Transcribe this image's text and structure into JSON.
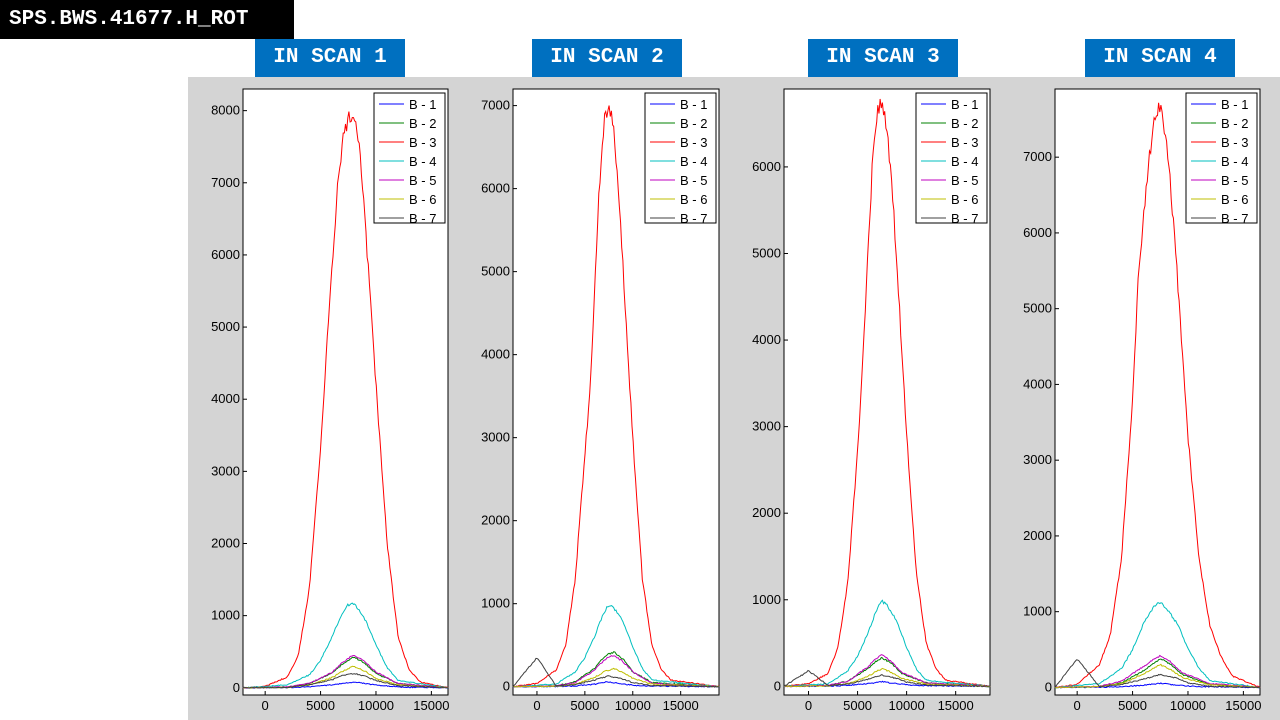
{
  "header": {
    "title": "SPS.BWS.41677.H_ROT"
  },
  "panels": [
    {
      "label": "IN SCAN 1"
    },
    {
      "label": "IN SCAN 2"
    },
    {
      "label": "IN SCAN 3"
    },
    {
      "label": "IN SCAN 4"
    }
  ],
  "series_colors": {
    "B - 1": "#0000ff",
    "B - 2": "#008000",
    "B - 3": "#ff0000",
    "B - 4": "#00bfbf",
    "B - 5": "#bf00bf",
    "B - 6": "#bfbf00",
    "B - 7": "#404040"
  },
  "chart_data": [
    {
      "type": "line",
      "title": "IN SCAN 1",
      "xlabel": "",
      "ylabel": "",
      "xlim": [
        -2000,
        16500
      ],
      "ylim": [
        -100,
        8300
      ],
      "xticks": [
        0,
        5000,
        10000,
        15000
      ],
      "yticks": [
        0,
        1000,
        2000,
        3000,
        4000,
        5000,
        6000,
        7000,
        8000
      ],
      "legend": "top-right",
      "series": [
        {
          "name": "B - 1",
          "x": [
            -2000,
            2000,
            4000,
            6000,
            8000,
            10000,
            12000,
            16500
          ],
          "y": [
            0,
            3,
            12,
            40,
            80,
            40,
            10,
            0
          ]
        },
        {
          "name": "B - 2",
          "x": [
            -2000,
            2000,
            4000,
            6000,
            7000,
            8000,
            9000,
            10000,
            12000,
            16500
          ],
          "y": [
            0,
            10,
            60,
            200,
            330,
            430,
            340,
            200,
            60,
            0
          ]
        },
        {
          "name": "B - 3",
          "x": [
            -2000,
            0,
            2000,
            3000,
            4000,
            5000,
            5500,
            6000,
            6500,
            7000,
            7500,
            8000,
            8500,
            9000,
            10000,
            11000,
            12000,
            13000,
            14000,
            16500
          ],
          "y": [
            0,
            20,
            150,
            450,
            1400,
            3300,
            4600,
            5700,
            6900,
            7600,
            7900,
            8000,
            7500,
            6500,
            4200,
            2000,
            700,
            250,
            80,
            0
          ]
        },
        {
          "name": "B - 4",
          "x": [
            -2000,
            2000,
            4000,
            5000,
            6000,
            7000,
            7500,
            8000,
            9000,
            10000,
            11000,
            12000,
            16500
          ],
          "y": [
            0,
            40,
            180,
            380,
            700,
            1050,
            1150,
            1170,
            950,
            600,
            280,
            100,
            0
          ]
        },
        {
          "name": "B - 5",
          "x": [
            -2000,
            2000,
            4000,
            6000,
            7000,
            8000,
            9000,
            10000,
            12000,
            16500
          ],
          "y": [
            0,
            10,
            60,
            210,
            350,
            460,
            360,
            220,
            60,
            0
          ]
        },
        {
          "name": "B - 6",
          "x": [
            -2000,
            2000,
            4000,
            6000,
            7000,
            8000,
            9000,
            10000,
            12000,
            16500
          ],
          "y": [
            0,
            5,
            40,
            140,
            230,
            300,
            230,
            130,
            40,
            0
          ]
        },
        {
          "name": "B - 7",
          "x": [
            -2000,
            2000,
            4000,
            6000,
            7000,
            8000,
            9000,
            10000,
            12000,
            16500
          ],
          "y": [
            0,
            5,
            40,
            110,
            170,
            200,
            160,
            100,
            30,
            0
          ]
        }
      ]
    },
    {
      "type": "line",
      "title": "IN SCAN 2",
      "xlabel": "",
      "ylabel": "",
      "xlim": [
        -2500,
        19000
      ],
      "ylim": [
        -100,
        7200
      ],
      "xticks": [
        0,
        5000,
        10000,
        15000
      ],
      "yticks": [
        0,
        1000,
        2000,
        3000,
        4000,
        5000,
        6000,
        7000
      ],
      "legend": "top-right",
      "series": [
        {
          "name": "B - 1",
          "x": [
            -2500,
            2000,
            4000,
            6000,
            7500,
            9000,
            11000,
            19000
          ],
          "y": [
            0,
            3,
            10,
            30,
            60,
            30,
            10,
            0
          ]
        },
        {
          "name": "B - 2",
          "x": [
            -2500,
            2000,
            4000,
            6000,
            7000,
            8000,
            9000,
            10000,
            12000,
            19000
          ],
          "y": [
            0,
            10,
            60,
            220,
            360,
            420,
            330,
            180,
            50,
            0
          ]
        },
        {
          "name": "B - 3",
          "x": [
            -2500,
            0,
            2000,
            3000,
            4000,
            5000,
            5500,
            6000,
            6500,
            7000,
            7500,
            8000,
            8500,
            9000,
            10000,
            11000,
            12000,
            13000,
            14000,
            19000
          ],
          "y": [
            0,
            40,
            200,
            500,
            1300,
            2800,
            3500,
            4700,
            6000,
            6800,
            7050,
            6700,
            6000,
            5000,
            3000,
            1300,
            500,
            200,
            80,
            0
          ]
        },
        {
          "name": "B - 4",
          "x": [
            -2500,
            2000,
            4000,
            5000,
            6000,
            7000,
            7500,
            8000,
            9000,
            10000,
            11000,
            12000,
            19000
          ],
          "y": [
            0,
            30,
            180,
            350,
            600,
            900,
            980,
            950,
            780,
            480,
            220,
            80,
            0
          ]
        },
        {
          "name": "B - 5",
          "x": [
            -2500,
            2000,
            4000,
            6000,
            7000,
            8000,
            9000,
            10000,
            12000,
            19000
          ],
          "y": [
            0,
            10,
            50,
            200,
            320,
            380,
            300,
            180,
            40,
            0
          ]
        },
        {
          "name": "B - 6",
          "x": [
            -2500,
            2000,
            4000,
            6000,
            7000,
            8000,
            9000,
            10000,
            12000,
            19000
          ],
          "y": [
            0,
            5,
            30,
            110,
            180,
            220,
            170,
            100,
            30,
            0
          ]
        },
        {
          "name": "B - 7",
          "x": [
            -2500,
            0,
            2000,
            4000,
            6000,
            7500,
            9000,
            10000,
            12000,
            19000
          ],
          "y": [
            0,
            350,
            10,
            25,
            80,
            130,
            90,
            50,
            15,
            0
          ]
        }
      ]
    },
    {
      "type": "line",
      "title": "IN SCAN 3",
      "xlabel": "",
      "ylabel": "",
      "xlim": [
        -2500,
        18500
      ],
      "ylim": [
        -100,
        6900
      ],
      "xticks": [
        0,
        5000,
        10000,
        15000
      ],
      "yticks": [
        0,
        1000,
        2000,
        3000,
        4000,
        5000,
        6000
      ],
      "legend": "top-right",
      "series": [
        {
          "name": "B - 1",
          "x": [
            -2500,
            2000,
            4000,
            6000,
            7500,
            9000,
            11000,
            18500
          ],
          "y": [
            0,
            3,
            10,
            30,
            55,
            30,
            10,
            0
          ]
        },
        {
          "name": "B - 2",
          "x": [
            -2500,
            2000,
            4000,
            6000,
            7000,
            7500,
            8500,
            9500,
            12000,
            18500
          ],
          "y": [
            0,
            10,
            60,
            200,
            300,
            330,
            260,
            150,
            40,
            0
          ]
        },
        {
          "name": "B - 3",
          "x": [
            -2500,
            0,
            2000,
            3000,
            4000,
            5000,
            5500,
            6000,
            6500,
            7000,
            7500,
            8000,
            8500,
            9000,
            10000,
            11000,
            12000,
            13000,
            14000,
            18500
          ],
          "y": [
            0,
            30,
            150,
            450,
            1200,
            2700,
            3700,
            4900,
            6000,
            6600,
            6800,
            6400,
            5800,
            4900,
            2900,
            1300,
            500,
            200,
            70,
            0
          ]
        },
        {
          "name": "B - 4",
          "x": [
            -2500,
            2000,
            4000,
            5000,
            6000,
            7000,
            7500,
            8000,
            9000,
            10000,
            11000,
            12000,
            18500
          ],
          "y": [
            0,
            30,
            180,
            350,
            600,
            900,
            980,
            940,
            750,
            450,
            200,
            70,
            0
          ]
        },
        {
          "name": "B - 5",
          "x": [
            -2500,
            2000,
            4000,
            6000,
            7000,
            7500,
            8500,
            9500,
            12000,
            18500
          ],
          "y": [
            0,
            10,
            60,
            220,
            330,
            360,
            280,
            160,
            40,
            0
          ]
        },
        {
          "name": "B - 6",
          "x": [
            -2500,
            2000,
            4000,
            6000,
            7000,
            7500,
            8500,
            9500,
            12000,
            18500
          ],
          "y": [
            0,
            5,
            30,
            110,
            180,
            200,
            160,
            90,
            25,
            0
          ]
        },
        {
          "name": "B - 7",
          "x": [
            -2500,
            0,
            2000,
            4000,
            6000,
            7500,
            9000,
            10000,
            12000,
            18500
          ],
          "y": [
            0,
            180,
            10,
            25,
            80,
            130,
            90,
            50,
            15,
            0
          ]
        }
      ]
    },
    {
      "type": "line",
      "title": "IN SCAN 4",
      "xlabel": "",
      "ylabel": "",
      "xlim": [
        -2000,
        16500
      ],
      "ylim": [
        -100,
        7900
      ],
      "xticks": [
        0,
        5000,
        10000,
        15000
      ],
      "yticks": [
        0,
        1000,
        2000,
        3000,
        4000,
        5000,
        6000,
        7000
      ],
      "legend": "top-right",
      "series": [
        {
          "name": "B - 1",
          "x": [
            -2000,
            2000,
            4000,
            6000,
            7500,
            9000,
            11000,
            16500
          ],
          "y": [
            0,
            3,
            10,
            30,
            55,
            30,
            10,
            0
          ]
        },
        {
          "name": "B - 2",
          "x": [
            -2000,
            2000,
            4000,
            6000,
            7000,
            7500,
            8500,
            9500,
            12000,
            16500
          ],
          "y": [
            0,
            10,
            60,
            220,
            330,
            380,
            300,
            170,
            40,
            0
          ]
        },
        {
          "name": "B - 3",
          "x": [
            -2000,
            0,
            2000,
            3000,
            4000,
            5000,
            5500,
            6000,
            6500,
            7000,
            7500,
            8000,
            8500,
            9000,
            10000,
            11000,
            12000,
            13000,
            14000,
            16500
          ],
          "y": [
            0,
            40,
            300,
            700,
            1700,
            3800,
            5400,
            6200,
            7000,
            7500,
            7700,
            7300,
            6500,
            5500,
            3300,
            1700,
            800,
            400,
            150,
            0
          ]
        },
        {
          "name": "B - 4",
          "x": [
            -2000,
            2000,
            4000,
            5000,
            6000,
            7000,
            7500,
            8000,
            9000,
            10000,
            11000,
            12000,
            16500
          ],
          "y": [
            0,
            50,
            250,
            500,
            850,
            1080,
            1120,
            1050,
            850,
            520,
            250,
            90,
            0
          ]
        },
        {
          "name": "B - 5",
          "x": [
            -2000,
            2000,
            4000,
            6000,
            7000,
            7500,
            8500,
            9500,
            12000,
            16500
          ],
          "y": [
            0,
            15,
            80,
            280,
            380,
            420,
            330,
            190,
            50,
            0
          ]
        },
        {
          "name": "B - 6",
          "x": [
            -2000,
            2000,
            4000,
            6000,
            7000,
            7500,
            8500,
            9500,
            12000,
            16500
          ],
          "y": [
            0,
            10,
            50,
            180,
            260,
            300,
            230,
            130,
            35,
            0
          ]
        },
        {
          "name": "B - 7",
          "x": [
            -2000,
            0,
            2000,
            4000,
            6000,
            7500,
            9000,
            10000,
            12000,
            16500
          ],
          "y": [
            0,
            380,
            10,
            40,
            110,
            170,
            120,
            60,
            15,
            0
          ]
        }
      ]
    }
  ]
}
